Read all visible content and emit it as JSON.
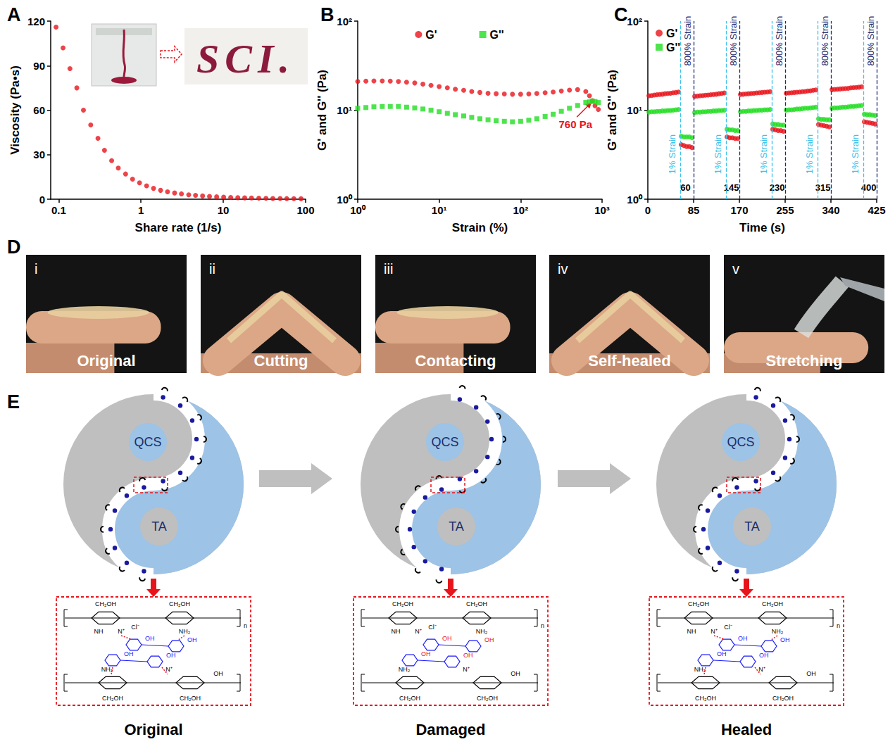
{
  "panel_labels": [
    "A",
    "B",
    "C",
    "D",
    "E"
  ],
  "chart_data": [
    {
      "type": "scatter",
      "x_label": "Share rate (1/s)",
      "y_label": "Viscosity (Pa•s)",
      "log": "x",
      "x": [
        0.093,
        0.113,
        0.137,
        0.166,
        0.2,
        0.245,
        0.3,
        0.36,
        0.44,
        0.53,
        0.65,
        0.79,
        0.96,
        1.17,
        1.42,
        1.73,
        2.1,
        2.56,
        3.1,
        3.8,
        4.6,
        5.6,
        6.8,
        8.3,
        10.1,
        12.3,
        15,
        18.2,
        22,
        27,
        33,
        40,
        49,
        59,
        72,
        88
      ],
      "values": [
        116,
        102,
        88,
        75,
        60,
        50,
        41,
        33,
        26,
        21,
        17,
        13.5,
        11,
        9,
        7.3,
        6,
        5,
        4.2,
        3.6,
        3,
        2.6,
        2.2,
        1.9,
        1.6,
        1.4,
        1.2,
        1,
        0.9,
        0.8,
        0.7,
        0.6,
        0.5,
        0.45,
        0.4,
        0.35,
        0.3
      ],
      "color": "#e8141c",
      "marker": "circle",
      "xlim": [
        0.08,
        100
      ],
      "xticks": [
        0.1,
        1,
        10,
        100
      ],
      "ylim": [
        0,
        120
      ],
      "yticks": [
        0,
        30,
        60,
        90,
        120
      ],
      "grid": false,
      "annotations": [
        {
          "text": "SCI."
        }
      ]
    },
    {
      "type": "scatter",
      "x_label": "Strain (%)",
      "y_label": "G' and G'' (Pa)",
      "log": true,
      "x": [
        1,
        1.26,
        1.58,
        2,
        2.51,
        3.16,
        3.98,
        5.01,
        6.31,
        7.94,
        10,
        12.6,
        15.8,
        20,
        25.1,
        31.6,
        39.8,
        50.1,
        63.1,
        79.4,
        100,
        126,
        158,
        200,
        251,
        316,
        398,
        501,
        631,
        700,
        760,
        820,
        900
      ],
      "series": [
        {
          "name": "G'",
          "color": "#e8141c",
          "marker": "circle",
          "values": [
            21,
            21.2,
            21.3,
            21.3,
            21.2,
            21,
            20.6,
            20.2,
            19.6,
            19,
            18.4,
            17.8,
            17.2,
            16.7,
            16.2,
            15.8,
            15.5,
            15.3,
            15.2,
            15.1,
            15.1,
            15.2,
            15.4,
            15.7,
            16,
            16.4,
            16.8,
            17,
            16.2,
            14.5,
            12.8,
            11.2,
            10.2
          ]
        },
        {
          "name": "G''",
          "color": "#22dd22",
          "marker": "square",
          "values": [
            10.5,
            10.7,
            10.9,
            11,
            11,
            11,
            10.8,
            10.6,
            10.3,
            10,
            9.6,
            9.2,
            8.9,
            8.6,
            8.3,
            8.0,
            7.8,
            7.6,
            7.5,
            7.4,
            7.5,
            7.7,
            8,
            8.5,
            9,
            9.7,
            10.5,
            11.3,
            12.2,
            12.4,
            12.6,
            12.5,
            12.2
          ]
        }
      ],
      "xlim": [
        1,
        1000
      ],
      "xticks": [
        {
          "value": 1,
          "label": "10⁰"
        },
        {
          "value": 10,
          "label": "10¹"
        },
        {
          "value": 100,
          "label": "10²"
        },
        {
          "value": 1000,
          "label": "10³"
        }
      ],
      "ylim": [
        1,
        100
      ],
      "yticks": [
        {
          "value": 1,
          "label": "10⁰"
        },
        {
          "value": 10,
          "label": "10¹"
        },
        {
          "value": 100,
          "label": "10²"
        }
      ],
      "legend": "top",
      "grid": false,
      "annotations": [
        {
          "text": "760 Pa",
          "x": 760,
          "y": 12.5,
          "color": "#e8141c"
        }
      ]
    },
    {
      "type": "scatter",
      "x_label": "Time (s)",
      "y_label": "G' and G'' (Pa)",
      "log": "y",
      "x": [
        2,
        7,
        12,
        17,
        22,
        27,
        32,
        37,
        42,
        47,
        52,
        57,
        62,
        67,
        72,
        77,
        82,
        87,
        92,
        97,
        102,
        107,
        112,
        117,
        122,
        127,
        132,
        137,
        142,
        147,
        152,
        157,
        162,
        167,
        172,
        177,
        182,
        187,
        192,
        197,
        202,
        207,
        212,
        217,
        222,
        227,
        232,
        237,
        242,
        247,
        252,
        257,
        262,
        267,
        272,
        277,
        282,
        287,
        292,
        297,
        302,
        307,
        312,
        317,
        322,
        327,
        332,
        337,
        342,
        347,
        352,
        357,
        362,
        367,
        372,
        377,
        382,
        387,
        392,
        397,
        402,
        407,
        412,
        417,
        422
      ],
      "series": [
        {
          "name": "G'",
          "color": "#e8141c",
          "marker": "circle",
          "values": [
            14.5,
            14.6,
            14.8,
            14.9,
            15,
            15.1,
            15.3,
            15.4,
            15.5,
            15.7,
            15.8,
            16,
            4.1,
            4,
            3.9,
            3.9,
            3.8,
            14.3,
            14.4,
            14.5,
            14.6,
            14.7,
            14.8,
            14.9,
            15,
            15.1,
            15.3,
            15.4,
            15.6,
            5,
            4.9,
            4.9,
            4.8,
            4.8,
            15,
            15.1,
            15.2,
            15.3,
            15.4,
            15.5,
            15.6,
            15.7,
            15.8,
            15.9,
            16,
            16.1,
            6.1,
            6,
            5.9,
            5.9,
            5.8,
            15.5,
            15.6,
            15.7,
            15.8,
            15.9,
            16,
            16.1,
            16.2,
            16.4,
            16.5,
            16.7,
            16.9,
            6.9,
            6.8,
            6.7,
            6.6,
            6.5,
            17,
            17.1,
            17.2,
            17.3,
            17.4,
            17.5,
            17.6,
            17.8,
            17.9,
            18,
            18.1,
            18.3,
            7.4,
            7.3,
            7.2,
            7.1,
            7
          ]
        },
        {
          "name": "G''",
          "color": "#22dd22",
          "marker": "circle",
          "values": [
            9.5,
            9.6,
            9.6,
            9.7,
            9.7,
            9.8,
            9.8,
            9.9,
            9.9,
            10,
            10.1,
            10.2,
            5.1,
            5,
            5,
            5,
            4.9,
            9.4,
            9.5,
            9.5,
            9.6,
            9.6,
            9.7,
            9.7,
            9.8,
            9.8,
            9.9,
            9.9,
            10,
            6.1,
            6,
            6,
            5.9,
            5.9,
            9.6,
            9.7,
            9.7,
            9.8,
            9.8,
            9.9,
            9.9,
            10,
            10,
            10.1,
            10.1,
            10.2,
            7,
            6.9,
            6.9,
            6.8,
            6.8,
            10,
            10.1,
            10.1,
            10.2,
            10.3,
            10.3,
            10.4,
            10.5,
            10.5,
            10.6,
            10.7,
            10.8,
            8,
            7.9,
            7.9,
            7.8,
            7.8,
            10.5,
            10.6,
            10.6,
            10.7,
            10.8,
            10.8,
            10.9,
            11,
            11,
            11.1,
            11.2,
            11.3,
            9,
            8.9,
            8.9,
            8.8,
            8.7
          ]
        }
      ],
      "xlim": [
        0,
        425
      ],
      "xticks": [
        0,
        85,
        170,
        255,
        340,
        425
      ],
      "ylim": [
        1,
        100
      ],
      "yticks": [
        {
          "value": 1,
          "label": "10⁰"
        },
        {
          "value": 10,
          "label": "10¹"
        },
        {
          "value": 100,
          "label": "10²"
        }
      ],
      "legend": "top-left",
      "grid": false,
      "vlines": [
        {
          "x": 60,
          "color": "#3cc3ea"
        },
        {
          "x": 85,
          "color": "#1f2a6e"
        },
        {
          "x": 145,
          "color": "#3cc3ea"
        },
        {
          "x": 170,
          "color": "#1f2a6e"
        },
        {
          "x": 230,
          "color": "#3cc3ea"
        },
        {
          "x": 255,
          "color": "#1f2a6e"
        },
        {
          "x": 315,
          "color": "#3cc3ea"
        },
        {
          "x": 340,
          "color": "#1f2a6e"
        },
        {
          "x": 400,
          "color": "#3cc3ea"
        },
        {
          "x": 425,
          "color": "#1f2a6e"
        }
      ],
      "annotations": [
        {
          "text": "1% Strain",
          "x": 45,
          "y": 3.2,
          "color": "#3cc3ea"
        },
        {
          "text": "800% Strain",
          "x": 74,
          "y": 60,
          "color": "#1f2a6e"
        },
        {
          "text": "1% Strain",
          "x": 130,
          "y": 3.2,
          "color": "#3cc3ea"
        },
        {
          "text": "800% Strain",
          "x": 159,
          "y": 60,
          "color": "#1f2a6e"
        },
        {
          "text": "1% Strain",
          "x": 215,
          "y": 3.2,
          "color": "#3cc3ea"
        },
        {
          "text": "800% Strain",
          "x": 244,
          "y": 60,
          "color": "#1f2a6e"
        },
        {
          "text": "1% Strain",
          "x": 300,
          "y": 3.2,
          "color": "#3cc3ea"
        },
        {
          "text": "800% Strain",
          "x": 329,
          "y": 60,
          "color": "#1f2a6e"
        },
        {
          "text": "1% Strain",
          "x": 385,
          "y": 3.2,
          "color": "#3cc3ea"
        },
        {
          "text": "800% Strain",
          "x": 414,
          "y": 60,
          "color": "#1f2a6e"
        }
      ],
      "vline_labels": [
        {
          "text": "60",
          "x": 70,
          "y": 1.35
        },
        {
          "text": "145",
          "x": 155,
          "y": 1.35
        },
        {
          "text": "230",
          "x": 240,
          "y": 1.35
        },
        {
          "text": "315",
          "x": 325,
          "y": 1.35
        },
        {
          "text": "400",
          "x": 410,
          "y": 1.35
        }
      ]
    }
  ],
  "photos": [
    {
      "index": "i",
      "caption": "Original"
    },
    {
      "index": "ii",
      "caption": "Cutting"
    },
    {
      "index": "iii",
      "caption": "Contacting"
    },
    {
      "index": "iv",
      "caption": "Self-healed"
    },
    {
      "index": "v",
      "caption": "Stretching"
    }
  ],
  "diagram": {
    "components": [
      "QCS",
      "TA"
    ],
    "stages": [
      "Original",
      "Damaged",
      "Healed"
    ],
    "structure_labels": {
      "side_group": "CH₂OH",
      "amine": "NH₂",
      "secondary_amine": "NH",
      "quaternary": "N⁺",
      "counterion": "Cl⁻",
      "hydroxyl": "OH",
      "repeat": "n"
    }
  }
}
